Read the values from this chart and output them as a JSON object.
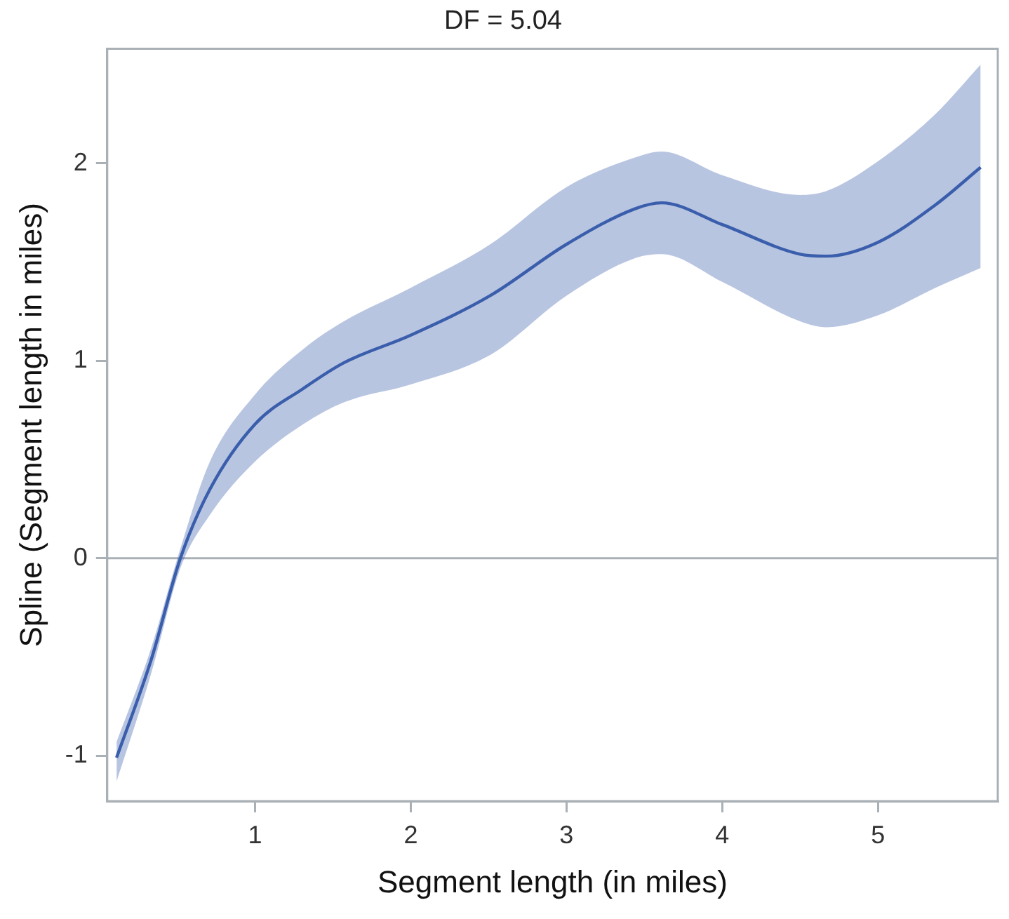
{
  "chart_data": {
    "type": "line",
    "title": "DF = 5.04",
    "xlabel": "Segment length (in miles)",
    "ylabel": "Spline (Segment length in miles)",
    "x": [
      0.11,
      0.33,
      0.52,
      0.71,
      1.0,
      1.31,
      1.57,
      2.0,
      2.51,
      3.0,
      3.44,
      3.61,
      4.0,
      4.5,
      4.67,
      5.0,
      5.37,
      5.66
    ],
    "series": [
      {
        "color": "#3a5fad",
        "values": [
          -1.01,
          -0.52,
          0.0,
          0.35,
          0.68,
          0.86,
          0.99,
          1.13,
          1.33,
          1.59,
          1.77,
          1.8,
          1.69,
          1.54,
          1.53,
          1.6,
          1.79,
          1.98
        ],
        "lower": [
          -1.13,
          -0.59,
          -0.05,
          0.22,
          0.49,
          0.68,
          0.79,
          0.88,
          1.03,
          1.33,
          1.52,
          1.54,
          1.4,
          1.2,
          1.17,
          1.23,
          1.37,
          1.47
        ],
        "upper": [
          -0.93,
          -0.46,
          0.05,
          0.49,
          0.83,
          1.06,
          1.2,
          1.37,
          1.59,
          1.88,
          2.03,
          2.06,
          1.94,
          1.84,
          1.86,
          2.01,
          2.25,
          2.5
        ]
      }
    ],
    "xlim": [
      0.05,
      5.77
    ],
    "xticks": [
      1,
      2,
      3,
      4,
      5
    ],
    "ylim": [
      -1.23,
      2.58
    ],
    "yticks": [
      -1,
      0,
      1,
      2
    ],
    "ref_lines": [
      {
        "axis": "y",
        "value": 0,
        "color": "#a9b0b6"
      }
    ],
    "grid": false,
    "legend": false,
    "marker": "none",
    "line_style": "solid"
  }
}
